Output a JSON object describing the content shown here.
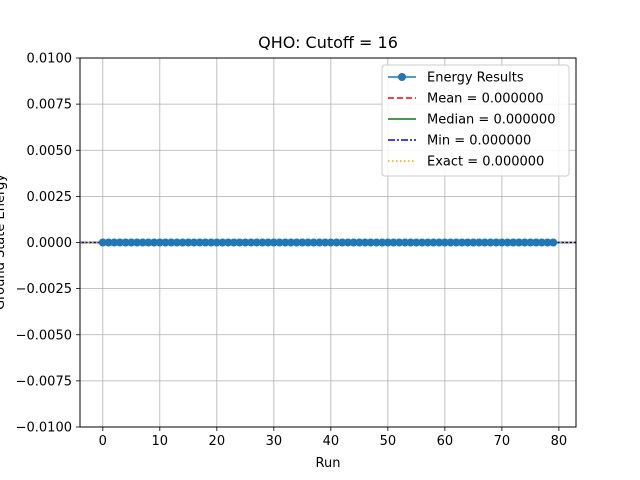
{
  "chart_data": {
    "type": "line",
    "title": "QHO: Cutoff = 16",
    "xlabel": "Run",
    "ylabel": "Ground State Energy",
    "xlim": [
      -4,
      83
    ],
    "ylim": [
      -0.01,
      0.01
    ],
    "x_ticks": [
      0,
      10,
      20,
      30,
      40,
      50,
      60,
      70,
      80
    ],
    "y_ticks": [
      -0.01,
      -0.0075,
      -0.005,
      -0.0025,
      0.0,
      0.0025,
      0.005,
      0.0075,
      0.01
    ],
    "x_tick_labels": [
      "0",
      "10",
      "20",
      "30",
      "40",
      "50",
      "60",
      "70",
      "80"
    ],
    "y_tick_labels": [
      "−0.0100",
      "−0.0075",
      "−0.0050",
      "−0.0025",
      "0.0000",
      "0.0025",
      "0.0050",
      "0.0075",
      "0.0100"
    ],
    "grid": true,
    "legend_position": "top-right",
    "series": [
      {
        "name": "Energy Results",
        "kind": "line-marker",
        "color": "#1f77b4",
        "x": [
          0,
          1,
          2,
          3,
          4,
          5,
          6,
          7,
          8,
          9,
          10,
          11,
          12,
          13,
          14,
          15,
          16,
          17,
          18,
          19,
          20,
          21,
          22,
          23,
          24,
          25,
          26,
          27,
          28,
          29,
          30,
          31,
          32,
          33,
          34,
          35,
          36,
          37,
          38,
          39,
          40,
          41,
          42,
          43,
          44,
          45,
          46,
          47,
          48,
          49,
          50,
          51,
          52,
          53,
          54,
          55,
          56,
          57,
          58,
          59,
          60,
          61,
          62,
          63,
          64,
          65,
          66,
          67,
          68,
          69,
          70,
          71,
          72,
          73,
          74,
          75,
          76,
          77,
          78,
          79
        ],
        "y": [
          0,
          0,
          0,
          0,
          0,
          0,
          0,
          0,
          0,
          0,
          0,
          0,
          0,
          0,
          0,
          0,
          0,
          0,
          0,
          0,
          0,
          0,
          0,
          0,
          0,
          0,
          0,
          0,
          0,
          0,
          0,
          0,
          0,
          0,
          0,
          0,
          0,
          0,
          0,
          0,
          0,
          0,
          0,
          0,
          0,
          0,
          0,
          0,
          0,
          0,
          0,
          0,
          0,
          0,
          0,
          0,
          0,
          0,
          0,
          0,
          0,
          0,
          0,
          0,
          0,
          0,
          0,
          0,
          0,
          0,
          0,
          0,
          0,
          0,
          0,
          0,
          0,
          0,
          0,
          0
        ]
      },
      {
        "name": "Mean = 0.000000",
        "kind": "hline",
        "value": 0.0,
        "color": "#ff0000",
        "dash": "dashed"
      },
      {
        "name": "Median = 0.000000",
        "kind": "hline",
        "value": 0.0,
        "color": "#008000",
        "dash": "solid"
      },
      {
        "name": "Min = 0.000000",
        "kind": "hline",
        "value": 0.0,
        "color": "#0000ff",
        "dash": "dashdot"
      },
      {
        "name": "Exact = 0.000000",
        "kind": "hline",
        "value": 0.0,
        "color": "#ffa500",
        "dash": "dotted"
      }
    ]
  }
}
